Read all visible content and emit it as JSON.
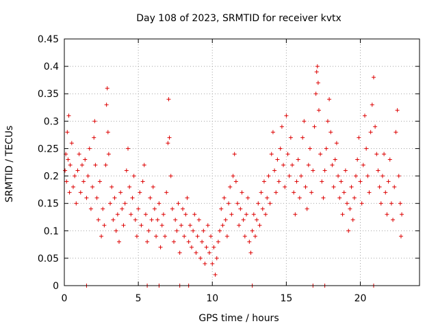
{
  "chart_data": {
    "type": "scatter",
    "title": "Day 108 of 2023, SRMTID for receiver kvtx",
    "xlabel": "GPS time / hours",
    "ylabel": "SRMTID / TECUs",
    "xlim": [
      0,
      24
    ],
    "ylim": [
      0,
      0.45
    ],
    "x_ticks": [
      0,
      5,
      10,
      15,
      20
    ],
    "y_ticks": [
      0,
      0.05,
      0.1,
      0.15,
      0.2,
      0.25,
      0.3,
      0.35,
      0.4,
      0.45
    ],
    "grid": true,
    "marker": "+",
    "color": "#dd0000",
    "series": [
      {
        "name": "SRMTID",
        "points": [
          [
            0.05,
            0.21
          ],
          [
            0.1,
            0.24
          ],
          [
            0.15,
            0.19
          ],
          [
            0.2,
            0.28
          ],
          [
            0.25,
            0.23
          ],
          [
            0.3,
            0.31
          ],
          [
            0.35,
            0.17
          ],
          [
            0.4,
            0.22
          ],
          [
            0.5,
            0.26
          ],
          [
            0.6,
            0.18
          ],
          [
            0.7,
            0.2
          ],
          [
            0.8,
            0.15
          ],
          [
            0.9,
            0.21
          ],
          [
            1.0,
            0.24
          ],
          [
            1.1,
            0.17
          ],
          [
            1.2,
            0.22
          ],
          [
            1.3,
            0.19
          ],
          [
            1.4,
            0.23
          ],
          [
            1.5,
            0.16
          ],
          [
            1.6,
            0.2
          ],
          [
            1.7,
            0.25
          ],
          [
            1.8,
            0.14
          ],
          [
            1.9,
            0.18
          ],
          [
            2.0,
            0.27
          ],
          [
            2.05,
            0.3
          ],
          [
            2.1,
            0.22
          ],
          [
            2.2,
            0.16
          ],
          [
            2.3,
            0.12
          ],
          [
            2.4,
            0.19
          ],
          [
            2.5,
            0.09
          ],
          [
            2.6,
            0.14
          ],
          [
            2.7,
            0.11
          ],
          [
            2.8,
            0.22
          ],
          [
            2.85,
            0.33
          ],
          [
            2.9,
            0.36
          ],
          [
            2.95,
            0.28
          ],
          [
            3.0,
            0.24
          ],
          [
            3.1,
            0.15
          ],
          [
            3.2,
            0.18
          ],
          [
            3.3,
            0.12
          ],
          [
            3.4,
            0.16
          ],
          [
            3.5,
            0.1
          ],
          [
            3.6,
            0.13
          ],
          [
            3.7,
            0.08
          ],
          [
            3.8,
            0.17
          ],
          [
            3.9,
            0.14
          ],
          [
            4.0,
            0.11
          ],
          [
            4.1,
            0.15
          ],
          [
            4.2,
            0.21
          ],
          [
            4.3,
            0.25
          ],
          [
            4.4,
            0.18
          ],
          [
            4.5,
            0.13
          ],
          [
            4.6,
            0.16
          ],
          [
            4.7,
            0.2
          ],
          [
            4.8,
            0.12
          ],
          [
            4.9,
            0.09
          ],
          [
            5.0,
            0.14
          ],
          [
            5.1,
            0.17
          ],
          [
            5.2,
            0.11
          ],
          [
            5.3,
            0.19
          ],
          [
            5.4,
            0.22
          ],
          [
            5.5,
            0.13
          ],
          [
            5.6,
            0.08
          ],
          [
            5.7,
            0.1
          ],
          [
            5.8,
            0.16
          ],
          [
            5.9,
            0.12
          ],
          [
            6.0,
            0.18
          ],
          [
            6.1,
            0.14
          ],
          [
            6.2,
            0.09
          ],
          [
            6.3,
            0.12
          ],
          [
            6.4,
            0.15
          ],
          [
            6.5,
            0.07
          ],
          [
            6.6,
            0.11
          ],
          [
            6.7,
            0.13
          ],
          [
            6.8,
            0.09
          ],
          [
            6.9,
            0.17
          ],
          [
            7.0,
            0.26
          ],
          [
            7.05,
            0.34
          ],
          [
            7.1,
            0.27
          ],
          [
            7.2,
            0.2
          ],
          [
            7.3,
            0.14
          ],
          [
            7.4,
            0.08
          ],
          [
            7.5,
            0.12
          ],
          [
            7.6,
            0.1
          ],
          [
            7.7,
            0.15
          ],
          [
            7.8,
            0.06
          ],
          [
            7.9,
            0.11
          ],
          [
            8.0,
            0.14
          ],
          [
            8.1,
            0.09
          ],
          [
            8.2,
            0.13
          ],
          [
            8.3,
            0.16
          ],
          [
            8.4,
            0.08
          ],
          [
            8.5,
            0.11
          ],
          [
            8.6,
            0.07
          ],
          [
            8.7,
            0.1
          ],
          [
            8.8,
            0.13
          ],
          [
            8.9,
            0.06
          ],
          [
            9.0,
            0.09
          ],
          [
            9.1,
            0.12
          ],
          [
            9.2,
            0.05
          ],
          [
            9.3,
            0.08
          ],
          [
            9.4,
            0.1
          ],
          [
            9.5,
            0.04
          ],
          [
            9.6,
            0.07
          ],
          [
            9.7,
            0.11
          ],
          [
            9.8,
            0.06
          ],
          [
            9.9,
            0.09
          ],
          [
            10.0,
            0.04
          ],
          [
            10.1,
            0.07
          ],
          [
            10.2,
            0.02
          ],
          [
            10.3,
            0.05
          ],
          [
            10.4,
            0.08
          ],
          [
            10.5,
            0.1
          ],
          [
            10.6,
            0.14
          ],
          [
            10.7,
            0.11
          ],
          [
            10.8,
            0.16
          ],
          [
            10.9,
            0.12
          ],
          [
            11.0,
            0.09
          ],
          [
            11.1,
            0.15
          ],
          [
            11.2,
            0.18
          ],
          [
            11.3,
            0.13
          ],
          [
            11.4,
            0.2
          ],
          [
            11.5,
            0.24
          ],
          [
            11.6,
            0.19
          ],
          [
            11.7,
            0.15
          ],
          [
            11.8,
            0.11
          ],
          [
            11.9,
            0.14
          ],
          [
            12.0,
            0.17
          ],
          [
            12.1,
            0.12
          ],
          [
            12.2,
            0.09
          ],
          [
            12.3,
            0.13
          ],
          [
            12.4,
            0.16
          ],
          [
            12.5,
            0.08
          ],
          [
            12.6,
            0.06
          ],
          [
            12.7,
            0.1
          ],
          [
            12.8,
            0.13
          ],
          [
            12.9,
            0.09
          ],
          [
            13.0,
            0.12
          ],
          [
            13.1,
            0.15
          ],
          [
            13.2,
            0.11
          ],
          [
            13.3,
            0.17
          ],
          [
            13.4,
            0.14
          ],
          [
            13.5,
            0.19
          ],
          [
            13.6,
            0.13
          ],
          [
            13.7,
            0.16
          ],
          [
            13.8,
            0.2
          ],
          [
            13.9,
            0.15
          ],
          [
            14.0,
            0.24
          ],
          [
            14.1,
            0.28
          ],
          [
            14.2,
            0.21
          ],
          [
            14.3,
            0.17
          ],
          [
            14.4,
            0.23
          ],
          [
            14.5,
            0.19
          ],
          [
            14.6,
            0.25
          ],
          [
            14.7,
            0.29
          ],
          [
            14.8,
            0.22
          ],
          [
            14.9,
            0.18
          ],
          [
            15.0,
            0.31
          ],
          [
            15.1,
            0.24
          ],
          [
            15.2,
            0.2
          ],
          [
            15.3,
            0.27
          ],
          [
            15.4,
            0.22
          ],
          [
            15.5,
            0.17
          ],
          [
            15.6,
            0.13
          ],
          [
            15.7,
            0.19
          ],
          [
            15.8,
            0.23
          ],
          [
            15.9,
            0.16
          ],
          [
            16.0,
            0.2
          ],
          [
            16.1,
            0.27
          ],
          [
            16.2,
            0.3
          ],
          [
            16.3,
            0.18
          ],
          [
            16.4,
            0.14
          ],
          [
            16.5,
            0.22
          ],
          [
            16.6,
            0.25
          ],
          [
            16.7,
            0.17
          ],
          [
            16.8,
            0.21
          ],
          [
            16.9,
            0.29
          ],
          [
            17.0,
            0.35
          ],
          [
            17.05,
            0.39
          ],
          [
            17.1,
            0.4
          ],
          [
            17.15,
            0.37
          ],
          [
            17.2,
            0.32
          ],
          [
            17.3,
            0.24
          ],
          [
            17.4,
            0.19
          ],
          [
            17.5,
            0.16
          ],
          [
            17.6,
            0.21
          ],
          [
            17.7,
            0.25
          ],
          [
            17.8,
            0.3
          ],
          [
            17.9,
            0.34
          ],
          [
            18.0,
            0.28
          ],
          [
            18.1,
            0.22
          ],
          [
            18.2,
            0.18
          ],
          [
            18.3,
            0.23
          ],
          [
            18.4,
            0.26
          ],
          [
            18.5,
            0.2
          ],
          [
            18.6,
            0.16
          ],
          [
            18.7,
            0.19
          ],
          [
            18.8,
            0.13
          ],
          [
            18.9,
            0.17
          ],
          [
            19.0,
            0.21
          ],
          [
            19.1,
            0.15
          ],
          [
            19.2,
            0.1
          ],
          [
            19.3,
            0.14
          ],
          [
            19.4,
            0.18
          ],
          [
            19.5,
            0.12
          ],
          [
            19.6,
            0.16
          ],
          [
            19.7,
            0.2
          ],
          [
            19.8,
            0.23
          ],
          [
            19.9,
            0.27
          ],
          [
            20.0,
            0.19
          ],
          [
            20.1,
            0.15
          ],
          [
            20.2,
            0.22
          ],
          [
            20.3,
            0.31
          ],
          [
            20.4,
            0.25
          ],
          [
            20.5,
            0.2
          ],
          [
            20.6,
            0.17
          ],
          [
            20.7,
            0.28
          ],
          [
            20.8,
            0.33
          ],
          [
            20.9,
            0.38
          ],
          [
            21.0,
            0.29
          ],
          [
            21.1,
            0.24
          ],
          [
            21.2,
            0.21
          ],
          [
            21.3,
            0.18
          ],
          [
            21.4,
            0.15
          ],
          [
            21.5,
            0.2
          ],
          [
            21.6,
            0.24
          ],
          [
            21.7,
            0.17
          ],
          [
            21.8,
            0.13
          ],
          [
            21.9,
            0.19
          ],
          [
            22.0,
            0.23
          ],
          [
            22.1,
            0.15
          ],
          [
            22.2,
            0.12
          ],
          [
            22.3,
            0.18
          ],
          [
            22.4,
            0.28
          ],
          [
            22.5,
            0.32
          ],
          [
            22.6,
            0.2
          ],
          [
            22.7,
            0.15
          ],
          [
            22.75,
            0.09
          ],
          [
            22.8,
            0.13
          ]
        ]
      }
    ],
    "gap_markers_x": [
      1.5,
      5.6,
      6.4,
      7.8,
      8.4,
      12.7,
      16.8,
      17.6,
      20.9
    ]
  }
}
